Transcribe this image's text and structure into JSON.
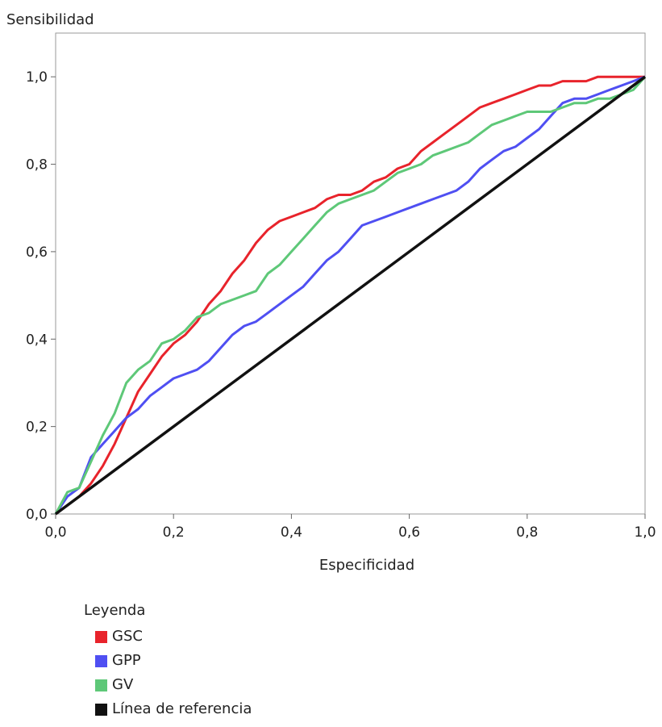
{
  "chart_data": {
    "type": "line",
    "ylabel": "Sensibilidad",
    "xlabel": "Especificidad",
    "xlim": [
      0,
      1
    ],
    "ylim": [
      0,
      1.1
    ],
    "x_ticks": [
      "0,0",
      "0,2",
      "0,4",
      "0,6",
      "0,8",
      "1,0"
    ],
    "y_ticks": [
      "0,0",
      "0,2",
      "0,4",
      "0,6",
      "0,8",
      "1,0"
    ],
    "legend_title": "Leyenda",
    "legend_position": "bottom-left",
    "series": [
      {
        "name": "GSC",
        "color": "#e8232b",
        "x": [
          0,
          0.02,
          0.04,
          0.06,
          0.08,
          0.1,
          0.12,
          0.14,
          0.16,
          0.18,
          0.2,
          0.22,
          0.24,
          0.26,
          0.28,
          0.3,
          0.32,
          0.34,
          0.36,
          0.38,
          0.4,
          0.42,
          0.44,
          0.46,
          0.48,
          0.5,
          0.52,
          0.54,
          0.56,
          0.58,
          0.6,
          0.62,
          0.64,
          0.66,
          0.68,
          0.7,
          0.72,
          0.74,
          0.76,
          0.78,
          0.8,
          0.82,
          0.84,
          0.86,
          0.88,
          0.9,
          0.92,
          0.94,
          0.96,
          0.98,
          1
        ],
        "y": [
          0,
          0.02,
          0.04,
          0.07,
          0.11,
          0.16,
          0.22,
          0.28,
          0.32,
          0.36,
          0.39,
          0.41,
          0.44,
          0.48,
          0.51,
          0.55,
          0.58,
          0.62,
          0.65,
          0.67,
          0.68,
          0.69,
          0.7,
          0.72,
          0.73,
          0.73,
          0.74,
          0.76,
          0.77,
          0.79,
          0.8,
          0.83,
          0.85,
          0.87,
          0.89,
          0.91,
          0.93,
          0.94,
          0.95,
          0.96,
          0.97,
          0.98,
          0.98,
          0.99,
          0.99,
          0.99,
          1.0,
          1.0,
          1.0,
          1.0,
          1.0
        ]
      },
      {
        "name": "GPP",
        "color": "#4f4ff2",
        "x": [
          0,
          0.01,
          0.02,
          0.04,
          0.06,
          0.08,
          0.1,
          0.12,
          0.14,
          0.16,
          0.18,
          0.2,
          0.22,
          0.24,
          0.26,
          0.28,
          0.3,
          0.32,
          0.34,
          0.36,
          0.38,
          0.4,
          0.42,
          0.44,
          0.46,
          0.48,
          0.5,
          0.52,
          0.54,
          0.56,
          0.58,
          0.6,
          0.62,
          0.64,
          0.66,
          0.68,
          0.7,
          0.72,
          0.74,
          0.76,
          0.78,
          0.8,
          0.82,
          0.84,
          0.86,
          0.88,
          0.9,
          0.92,
          0.94,
          0.96,
          0.98,
          1
        ],
        "y": [
          0,
          0.02,
          0.04,
          0.06,
          0.13,
          0.16,
          0.19,
          0.22,
          0.24,
          0.27,
          0.29,
          0.31,
          0.32,
          0.33,
          0.35,
          0.38,
          0.41,
          0.43,
          0.44,
          0.46,
          0.48,
          0.5,
          0.52,
          0.55,
          0.58,
          0.6,
          0.63,
          0.66,
          0.67,
          0.68,
          0.69,
          0.7,
          0.71,
          0.72,
          0.73,
          0.74,
          0.76,
          0.79,
          0.81,
          0.83,
          0.84,
          0.86,
          0.88,
          0.91,
          0.94,
          0.95,
          0.95,
          0.96,
          0.97,
          0.98,
          0.99,
          1.0
        ]
      },
      {
        "name": "GV",
        "color": "#5ec878",
        "x": [
          0,
          0.02,
          0.04,
          0.06,
          0.08,
          0.1,
          0.12,
          0.14,
          0.16,
          0.18,
          0.2,
          0.22,
          0.24,
          0.26,
          0.28,
          0.3,
          0.32,
          0.34,
          0.36,
          0.38,
          0.4,
          0.42,
          0.44,
          0.46,
          0.48,
          0.5,
          0.52,
          0.54,
          0.56,
          0.58,
          0.6,
          0.62,
          0.64,
          0.66,
          0.68,
          0.7,
          0.72,
          0.74,
          0.76,
          0.78,
          0.8,
          0.82,
          0.84,
          0.86,
          0.88,
          0.9,
          0.92,
          0.94,
          0.96,
          0.98,
          1
        ],
        "y": [
          0,
          0.05,
          0.06,
          0.12,
          0.18,
          0.23,
          0.3,
          0.33,
          0.35,
          0.39,
          0.4,
          0.42,
          0.45,
          0.46,
          0.48,
          0.49,
          0.5,
          0.51,
          0.55,
          0.57,
          0.6,
          0.63,
          0.66,
          0.69,
          0.71,
          0.72,
          0.73,
          0.74,
          0.76,
          0.78,
          0.79,
          0.8,
          0.82,
          0.83,
          0.84,
          0.85,
          0.87,
          0.89,
          0.9,
          0.91,
          0.92,
          0.92,
          0.92,
          0.93,
          0.94,
          0.94,
          0.95,
          0.95,
          0.96,
          0.97,
          1.0
        ]
      },
      {
        "name": "Línea de referencia",
        "color": "#111111",
        "x": [
          0,
          1
        ],
        "y": [
          0,
          1
        ]
      }
    ]
  }
}
